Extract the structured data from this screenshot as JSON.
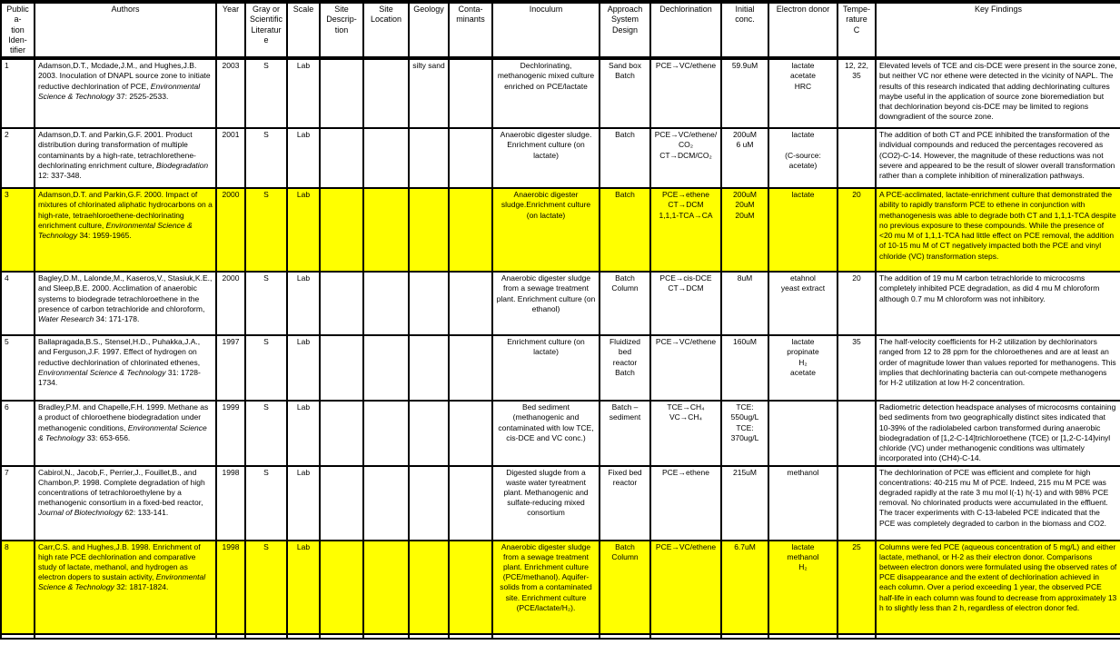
{
  "table": {
    "columns": [
      {
        "key": "pub_id",
        "lines": [
          "Publica-",
          "tion Iden-",
          "tifier"
        ]
      },
      {
        "key": "authors",
        "lines": [
          "Authors"
        ]
      },
      {
        "key": "year",
        "lines": [
          "Year"
        ]
      },
      {
        "key": "gray_or_scientific",
        "lines": [
          "Gray or",
          "Scientific",
          "Literature"
        ]
      },
      {
        "key": "scale",
        "lines": [
          "Scale"
        ]
      },
      {
        "key": "site_description",
        "lines": [
          "Site Descrip-",
          "tion"
        ]
      },
      {
        "key": "site_location",
        "lines": [
          "Site",
          "Location"
        ]
      },
      {
        "key": "geology",
        "lines": [
          "Geology"
        ]
      },
      {
        "key": "contaminants",
        "lines": [
          "Conta-",
          "minants"
        ]
      },
      {
        "key": "inoculum",
        "lines": [
          "Inoculum"
        ]
      },
      {
        "key": "approach_system_design",
        "lines": [
          "Approach",
          "System Design"
        ]
      },
      {
        "key": "dechlorination",
        "lines": [
          "Dechlorination"
        ]
      },
      {
        "key": "initial_conc",
        "lines": [
          "Initial conc."
        ]
      },
      {
        "key": "electron_donor",
        "lines": [
          "Electron donor"
        ]
      },
      {
        "key": "temperature_c",
        "lines": [
          "Tempe-",
          "rature",
          "C"
        ]
      },
      {
        "key": "key_findings",
        "lines": [
          "Key Findings"
        ]
      }
    ],
    "highlight_color": "#FFFF00",
    "rows": [
      {
        "highlight": false,
        "cells": {
          "pub_id": "1",
          "authors": [
            {
              "t": "Adamson,D.T., Mcdade,J.M., and Hughes,J.B. 2003. Inoculation of DNAPL source zone to initiate reductive dechlorination of PCE, ",
              "i": false
            },
            {
              "t": "Environmental Science & Technology",
              "i": true
            },
            {
              "t": " 37: 2525-2533.",
              "i": false
            }
          ],
          "year": "2003",
          "gray_or_scientific": "S",
          "scale": "Lab",
          "site_description": "",
          "site_location": "",
          "geology": "silty sand",
          "contaminants": "",
          "inoculum": "Dechlorinating, methanogenic mixed culture enriched on PCE/lactate",
          "approach_system_design": [
            "Sand box",
            "Batch"
          ],
          "dechlorination": [
            "PCE→VC/ethene"
          ],
          "initial_conc": [
            "59.9uM"
          ],
          "electron_donor": [
            "lactate",
            "acetate",
            "HRC"
          ],
          "temperature_c": "12, 22, 35",
          "key_findings": "Elevated levels of TCE and cis-DCE were present in the source zone, but neither VC nor ethene were detected in the vicinity of NAPL. The results of this research indicated that adding dechlorinating cultures maybe useful in the application of source zone bioremediation but that dechlorination beyond cis-DCE may be limited to regions downgradient of the source zone."
        }
      },
      {
        "highlight": false,
        "cells": {
          "pub_id": "2",
          "authors": [
            {
              "t": "Adamson,D.T. and Parkin,G.F. 2001. Product distribution during transformation of multiple contaminants by a high-rate, tetrachlorethene-dechlorinating enrichment culture, ",
              "i": false
            },
            {
              "t": "Biodegradation",
              "i": true
            },
            {
              "t": " 12: 337-348.",
              "i": false
            }
          ],
          "year": "2001",
          "gray_or_scientific": "S",
          "scale": "Lab",
          "site_description": "",
          "site_location": "",
          "geology": "",
          "contaminants": "",
          "inoculum": "Anaerobic digester sludge. Enrichment culture (on lactate)",
          "approach_system_design": [
            "Batch"
          ],
          "dechlorination": [
            "PCE→VC/ethene/CO₂",
            "CT→DCM/CO₂"
          ],
          "initial_conc": [
            "200uM",
            "6 uM"
          ],
          "electron_donor": [
            "lactate",
            "",
            "(C-source: acetate)"
          ],
          "temperature_c": "",
          "key_findings": "The addition of both CT and PCE inhibited the transformation of the individual compounds and reduced the percentages recovered as (CO2)-C-14. However, the magnitude of these reductions was not severe and appeared to be the result of slower overall transformation rather than a complete inhibition of mineralization pathways."
        }
      },
      {
        "highlight": true,
        "cells": {
          "pub_id": "3",
          "authors": [
            {
              "t": "Adamson,D.T. and Parkin,G.F. 2000. Impact of mixtures of chlorinated aliphatic hydrocarbons on a high-rate, tetraehloroethene-dechlorinating enrichment culture, ",
              "i": false
            },
            {
              "t": "Environmental Science & Technology",
              "i": true
            },
            {
              "t": " 34: 1959-1965.",
              "i": false
            }
          ],
          "year": "2000",
          "gray_or_scientific": "S",
          "scale": "Lab",
          "site_description": "",
          "site_location": "",
          "geology": "",
          "contaminants": "",
          "inoculum": "Anaerobic digester sludge.Enrichment culture (on lactate)",
          "approach_system_design": [
            "Batch"
          ],
          "dechlorination": [
            "PCE→ethene",
            "CT→DCM",
            "1,1,1-TCA→CA"
          ],
          "initial_conc": [
            "200uM",
            "20uM",
            "20uM"
          ],
          "electron_donor": [
            "lactate"
          ],
          "temperature_c": "20",
          "key_findings": "A PCE-acclimated, lactate-enrichment culture that demonstrated the ability to rapidly transform PCE to ethene in conjunction with methanogenesis was able to degrade both CT and 1,1,1-TCA despite no previous exposure to these compounds. While the presence of <20 mu M of 1,1,1-TCA had little effect on PCE removal, the addition of 10-15 mu M of CT negatively impacted both the PCE and vinyl chloride (VC) transformation steps."
        }
      },
      {
        "highlight": false,
        "cells": {
          "pub_id": "4",
          "authors": [
            {
              "t": "Bagley,D.M., Lalonde,M., Kaseros,V., Stasiuk,K.E., and Sleep,B.E. 2000. Acclimation of anaerobic systems to biodegrade tetrachloroethene in the presence of carbon tetrachloride and chloroform, ",
              "i": false
            },
            {
              "t": "Water Research",
              "i": true
            },
            {
              "t": " 34: 171-178.",
              "i": false
            }
          ],
          "year": "2000",
          "gray_or_scientific": "S",
          "scale": "Lab",
          "site_description": "",
          "site_location": "",
          "geology": "",
          "contaminants": "",
          "inoculum": "Anaerobic digester sludge from a sewage treatment plant. Enrichment culture (on ethanol)",
          "approach_system_design": [
            "Batch",
            "Column"
          ],
          "dechlorination": [
            "PCE→cis-DCE",
            "CT→DCM"
          ],
          "initial_conc": [
            "8uM"
          ],
          "electron_donor": [
            "etahnol",
            "yeast extract"
          ],
          "temperature_c": "20",
          "key_findings": "The addition of 19 mu M carbon tetrachloride to microcosms completely inhibited PCE degradation, as did 4 mu M chloroform although 0.7 mu M chloroform was not inhibitory."
        }
      },
      {
        "highlight": false,
        "cells": {
          "pub_id": "5",
          "authors": [
            {
              "t": "Ballapragada,B.S., Stensel,H.D., Puhakka,J.A., and Ferguson,J.F. 1997. Effect of hydrogen on reductive dechlorination of chlorinated ethenes, ",
              "i": false
            },
            {
              "t": "Environmental Science & Technology",
              "i": true
            },
            {
              "t": " 31: 1728-1734.",
              "i": false
            }
          ],
          "year": "1997",
          "gray_or_scientific": "S",
          "scale": "Lab",
          "site_description": "",
          "site_location": "",
          "geology": "",
          "contaminants": "",
          "inoculum": "Enrichment culture (on lactate)",
          "approach_system_design": [
            "Fluidized bed",
            "reactor",
            "Batch"
          ],
          "dechlorination": [
            "PCE→VC/ethene"
          ],
          "initial_conc": [
            "160uM"
          ],
          "electron_donor": [
            "lactate",
            "propinate",
            "H₂",
            "acetate"
          ],
          "temperature_c": "35",
          "key_findings": "The half-velocity coefficients for H-2 utilization by dechlorinators ranged from 12 to 28 ppm for the chloroethenes and are at least an order of magnitude lower than values reported for methanogens. This implies that dechlorinating bacteria can out-compete methanogens for H-2 utilization at low H-2 concentration."
        }
      },
      {
        "highlight": false,
        "cells": {
          "pub_id": "6",
          "authors": [
            {
              "t": "Bradley,P.M. and Chapelle,F.H. 1999. Methane as a product of chloroethene biodegradation under methanogenic conditions, ",
              "i": false
            },
            {
              "t": "Environmental Science & Technology",
              "i": true
            },
            {
              "t": " 33: 653-656.",
              "i": false
            }
          ],
          "year": "1999",
          "gray_or_scientific": "S",
          "scale": "Lab",
          "site_description": "",
          "site_location": "",
          "geology": "",
          "contaminants": "",
          "inoculum": "Bed sediment (methanogenic and contaminated with low TCE, cis-DCE and VC conc.)",
          "approach_system_design": [
            "Batch –",
            "sediment"
          ],
          "dechlorination": [
            "TCE→CH₄",
            "VC→CH₄"
          ],
          "initial_conc": [
            "TCE: 550ug/L",
            "TCE: 370ug/L"
          ],
          "electron_donor": [],
          "temperature_c": "",
          "key_findings": "Radiometric detection headspace analyses of microcosms containing bed sediments from two geographically distinct sites indicated that 10-39% of the radiolabeled carbon transformed during anaerobic biodegradation of [1,2-C-14]trichloroethene (TCE) or [1,2-C-14]vinyl chloride (VC) under methanogenic conditions was ultimately incorporated into (CH4)-C-14."
        }
      },
      {
        "highlight": false,
        "cells": {
          "pub_id": "7",
          "authors": [
            {
              "t": "Cabirol,N., Jacob,F., Perrier,J., Fouillet,B., and Chambon,P. 1998. Complete degradation of high concentrations of tetrachloroethylene by a methanogenic consortium in a fixed-bed reactor, ",
              "i": false
            },
            {
              "t": "Journal of Biotechnology",
              "i": true
            },
            {
              "t": " 62: 133-141.",
              "i": false
            }
          ],
          "year": "1998",
          "gray_or_scientific": "S",
          "scale": "Lab",
          "site_description": "",
          "site_location": "",
          "geology": "",
          "contaminants": "",
          "inoculum": "Digested slugde from a waste water tyreatment plant. Methanogenic and sulfate-reducing mixed consortium",
          "approach_system_design": [
            "Fixed bed",
            "reactor"
          ],
          "dechlorination": [
            "PCE→ethene"
          ],
          "initial_conc": [
            "215uM"
          ],
          "electron_donor": [
            "methanol"
          ],
          "temperature_c": "",
          "key_findings": "The dechlorination of PCE was efficient and complete for high concentrations: 40-215 mu M of PCE. Indeed, 215 mu M PCE was degraded rapidly at the rate 3 mu mol l(-1) h(-1) and with 98% PCE removal. No chlorinated products were accumulated in the effluent. The tracer experiments with C-13-labeled PCE indicated that the PCE was completely degraded to carbon in the biomass and CO2."
        }
      },
      {
        "highlight": true,
        "cells": {
          "pub_id": "8",
          "authors": [
            {
              "t": "Carr,C.S. and Hughes,J.B. 1998. Enrichment of high rate PCE dechlorination and comparative study of lactate, methanol, and hydrogen as electron dopers to sustain activity, ",
              "i": false
            },
            {
              "t": "Environmental Science & Technology",
              "i": true
            },
            {
              "t": " 32: 1817-1824.",
              "i": false
            }
          ],
          "year": "1998",
          "gray_or_scientific": "S",
          "scale": "Lab",
          "site_description": "",
          "site_location": "",
          "geology": "",
          "contaminants": "",
          "inoculum": "Anaerobic digester sludge from a sewage treatment plant. Enrichment culture (PCE/methanol). Aquifer-solids from a contaminated site. Enrichment culture (PCE/lactate/H₂).",
          "approach_system_design": [
            "Batch",
            "Column"
          ],
          "dechlorination": [
            "PCE→VC/ethene"
          ],
          "initial_conc": [
            "6.7uM"
          ],
          "electron_donor": [
            "lactate",
            "methanol",
            "H₂"
          ],
          "temperature_c": "25",
          "key_findings": "Columns were fed PCE (aqueous concentration of 5 mg/L) and either lactate, methanol, or H-2 as their electron donor. Comparisons between electron donors were formulated using the observed rates of PCE disappearance and the extent of dechlorination achieved in each column. Over a period exceeding 1 year, the observed PCE half-life in each column was found to decrease from approximately 13 h to slightly less than 2 h, regardless of electron donor fed."
        }
      }
    ]
  }
}
